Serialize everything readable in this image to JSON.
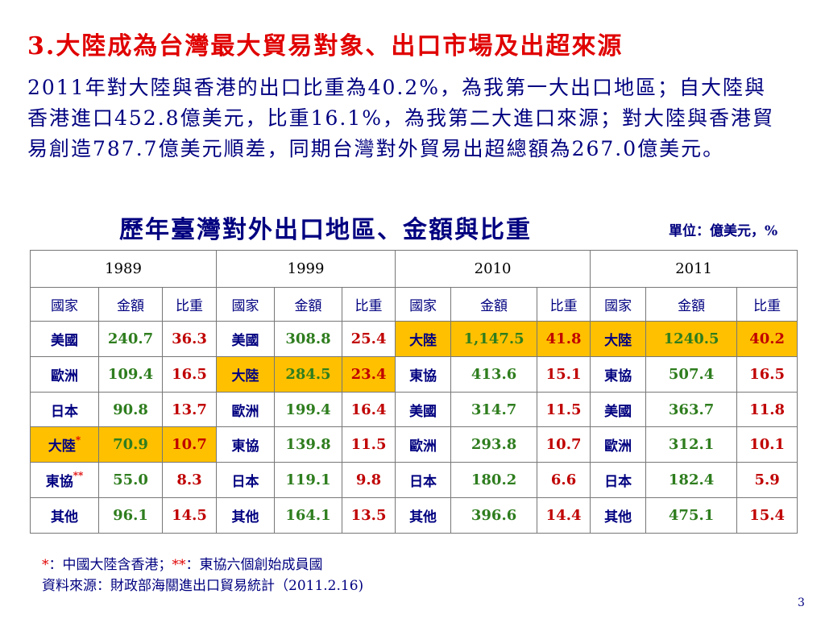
{
  "title": "3.大陸成為台灣最大貿易對象、出口市場及出超來源",
  "paragraph": "2011年對大陸與香港的出口比重為40.2%，為我第一大出口地區；自大陸與香港進口452.8億美元，比重16.1%，為我第二大進口來源；對大陸與香港貿易創造787.7億美元順差，同期台灣對外貿易出超總額為267.0億美元。",
  "table_title": "歷年臺灣對外出口地區、金額與比重",
  "unit": "單位：億美元，%",
  "table": {
    "years": [
      "1989",
      "1999",
      "2010",
      "2011"
    ],
    "col_headers": [
      "國家",
      "金額",
      "比重"
    ],
    "rows": [
      [
        [
          "美國",
          "240.7",
          "36.3"
        ],
        [
          "美國",
          "308.8",
          "25.4"
        ],
        [
          "大陸",
          "1,147.5",
          "41.8"
        ],
        [
          "大陸",
          "1240.5",
          "40.2"
        ]
      ],
      [
        [
          "歐洲",
          "109.4",
          "16.5"
        ],
        [
          "大陸",
          "284.5",
          "23.4"
        ],
        [
          "東協",
          "413.6",
          "15.1"
        ],
        [
          "東協",
          "507.4",
          "16.5"
        ]
      ],
      [
        [
          "日本",
          "90.8",
          "13.7"
        ],
        [
          "歐洲",
          "199.4",
          "16.4"
        ],
        [
          "美國",
          "314.7",
          "11.5"
        ],
        [
          "美國",
          "363.7",
          "11.8"
        ]
      ],
      [
        [
          "大陸",
          "70.9",
          "10.7"
        ],
        [
          "東協",
          "139.8",
          "11.5"
        ],
        [
          "歐洲",
          "293.8",
          "10.7"
        ],
        [
          "歐洲",
          "312.1",
          "10.1"
        ]
      ],
      [
        [
          "東協",
          "55.0",
          "8.3"
        ],
        [
          "日本",
          "119.1",
          "9.8"
        ],
        [
          "日本",
          "180.2",
          "6.6"
        ],
        [
          "日本",
          "182.4",
          "5.9"
        ]
      ],
      [
        [
          "其他",
          "96.1",
          "14.5"
        ],
        [
          "其他",
          "164.1",
          "13.5"
        ],
        [
          "其他",
          "396.6",
          "14.4"
        ],
        [
          "其他",
          "475.1",
          "15.4"
        ]
      ]
    ],
    "markers": {
      "china_1989": "*",
      "asean_1989": "**"
    },
    "highlight_color": "#ffc000"
  },
  "footnote": {
    "star1": "*",
    "star1_text": "：中國大陸含香港；",
    "star2": "**",
    "star2_text": "：東協六個創始成員國",
    "source": "資料來源：財政部海關進出口貿易統計（2011.2.16)"
  },
  "page_number": "3"
}
